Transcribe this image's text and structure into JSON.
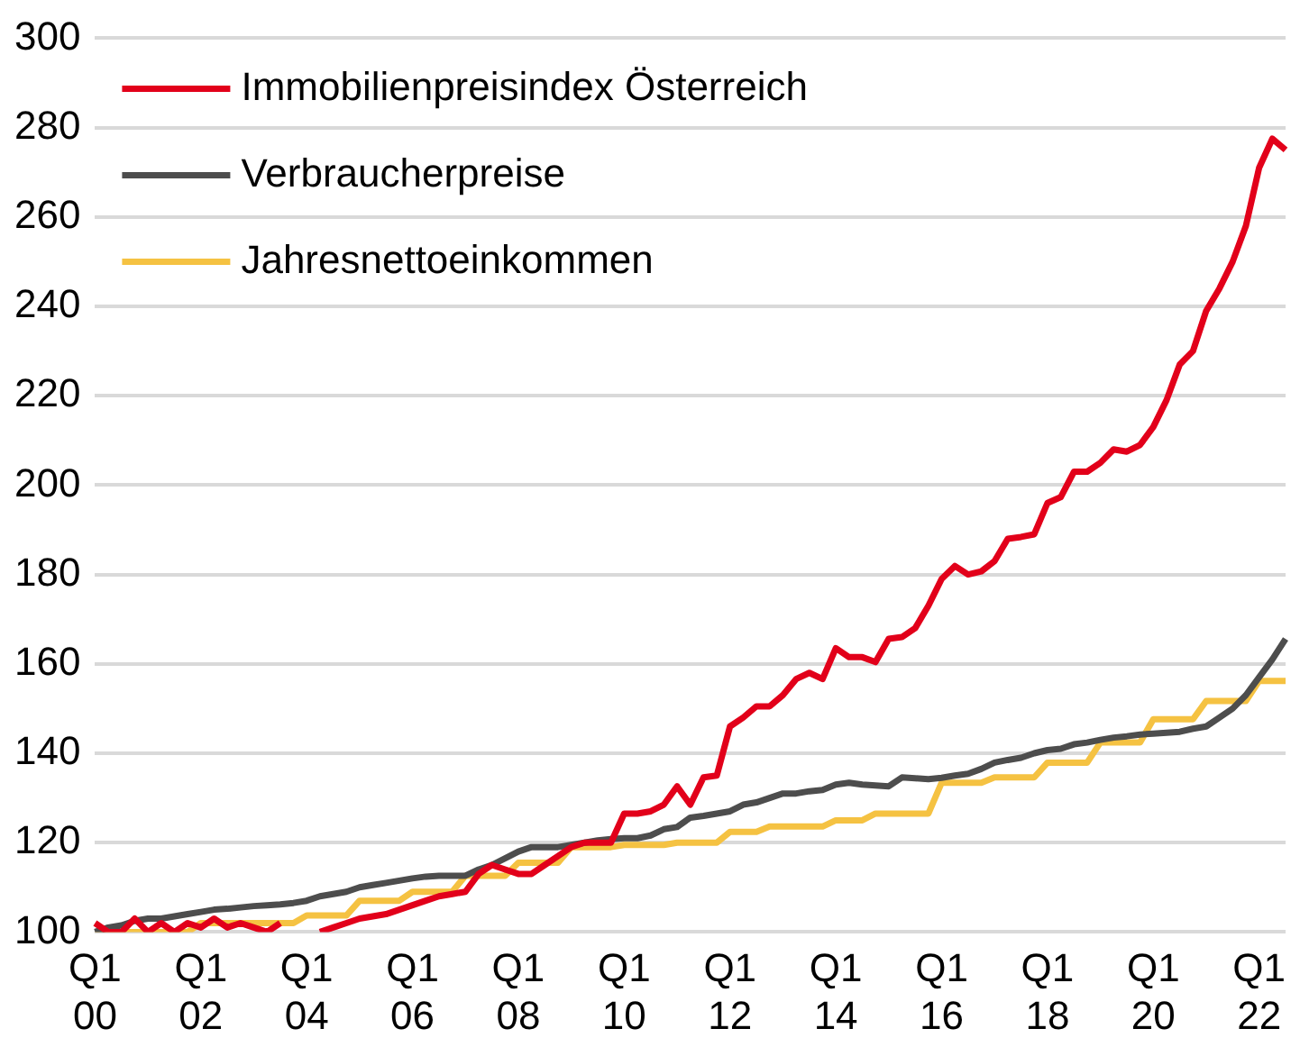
{
  "chart_data": {
    "type": "line",
    "legend": "top left",
    "grid": "y",
    "marker": "none",
    "line_style": "solid",
    "categories": [
      "Q1 00",
      null,
      null,
      null,
      null,
      null,
      null,
      null,
      "Q1 02",
      null,
      null,
      null,
      null,
      null,
      null,
      null,
      "Q1 04",
      null,
      null,
      null,
      null,
      null,
      null,
      null,
      "Q1 06",
      null,
      null,
      null,
      null,
      null,
      null,
      null,
      "Q1 08",
      null,
      null,
      null,
      null,
      null,
      null,
      null,
      "Q1 10",
      null,
      null,
      null,
      null,
      null,
      null,
      null,
      "Q1 12",
      null,
      null,
      null,
      null,
      null,
      null,
      null,
      "Q1 14",
      null,
      null,
      null,
      null,
      null,
      null,
      null,
      "Q1 16",
      null,
      null,
      null,
      null,
      null,
      null,
      null,
      "Q1 18",
      null,
      null,
      null,
      null,
      null,
      null,
      null,
      "Q1 20",
      null,
      null,
      null,
      null,
      null,
      null,
      null,
      "Q1 22",
      null,
      null
    ],
    "ylim": [
      100,
      300
    ],
    "yticks": [
      100,
      120,
      140,
      160,
      180,
      200,
      220,
      240,
      260,
      280,
      300
    ],
    "series": [
      {
        "name": "Immobilienpreisindex Österreich",
        "color": "#e2001a",
        "values": [
          102,
          100,
          100,
          103,
          100,
          102,
          100,
          102,
          101,
          103,
          101,
          102,
          101,
          100,
          102,
          null,
          null,
          100,
          101,
          102,
          103,
          103.5,
          104,
          105,
          106,
          107,
          108,
          108.5,
          109,
          113,
          115,
          114,
          113,
          113,
          115,
          117,
          119,
          120,
          120,
          120,
          126.5,
          126.5,
          127,
          128.5,
          132.6,
          128.5,
          134.6,
          135,
          146,
          148,
          150.5,
          150.5,
          153,
          156.6,
          158,
          156.6,
          163.5,
          161.5,
          161.5,
          160.4,
          165.6,
          166,
          168,
          173,
          179,
          181.9,
          180,
          180.7,
          183,
          188,
          188.4,
          189,
          196,
          197.3,
          203,
          203,
          205,
          208,
          207.5,
          209,
          213,
          219,
          227,
          230,
          239,
          244,
          250,
          258,
          271,
          277.5,
          275
        ]
      },
      {
        "name": "Verbraucherpreise",
        "color": "#4d4d4d",
        "values": [
          100,
          101,
          101.5,
          102.5,
          103,
          103,
          103.5,
          104,
          104.5,
          105,
          105.2,
          105.5,
          105.8,
          106,
          106.2,
          106.5,
          107,
          108,
          108.5,
          109,
          110,
          110.5,
          111,
          111.5,
          112,
          112.4,
          112.6,
          112.6,
          112.6,
          114,
          115,
          116.5,
          118,
          119,
          119,
          119,
          119.5,
          120,
          120.5,
          120.8,
          121,
          121,
          121.6,
          123,
          123.5,
          125.6,
          126,
          126.5,
          127,
          128.5,
          129,
          130,
          131,
          131,
          131.5,
          131.8,
          133,
          133.4,
          133,
          132.8,
          132.6,
          134.6,
          134.4,
          134.2,
          134.5,
          135,
          135.4,
          136.5,
          137.9,
          138.5,
          139,
          140,
          140.7,
          141,
          142,
          142.4,
          143,
          143.5,
          143.8,
          144.2,
          144.4,
          144.6,
          144.8,
          145.5,
          146,
          148,
          150,
          153,
          157,
          161,
          165.6
        ]
      },
      {
        "name": "Jahresnettoeinkommen",
        "color": "#f5c242",
        "values": [
          100,
          100,
          100,
          100,
          100,
          100,
          100,
          100,
          102,
          102,
          102,
          102,
          102,
          102,
          102,
          102,
          103.7,
          103.7,
          103.7,
          103.7,
          107,
          107,
          107,
          107,
          109,
          109,
          109,
          109,
          112.6,
          112.6,
          112.6,
          112.6,
          115.5,
          115.5,
          115.5,
          115.5,
          119,
          119,
          119,
          119,
          119.5,
          119.5,
          119.5,
          119.5,
          120,
          120,
          120,
          120,
          122.4,
          122.4,
          122.4,
          123.6,
          123.6,
          123.6,
          123.6,
          123.6,
          125,
          125,
          125,
          126.5,
          126.5,
          126.5,
          126.5,
          126.5,
          133.4,
          133.4,
          133.4,
          133.4,
          134.6,
          134.6,
          134.6,
          134.6,
          137.9,
          137.9,
          137.9,
          137.9,
          142.4,
          142.4,
          142.4,
          142.4,
          147.6,
          147.6,
          147.6,
          147.6,
          151.7,
          151.7,
          151.7,
          151.7,
          156.2,
          156.2,
          156.2
        ]
      }
    ]
  }
}
